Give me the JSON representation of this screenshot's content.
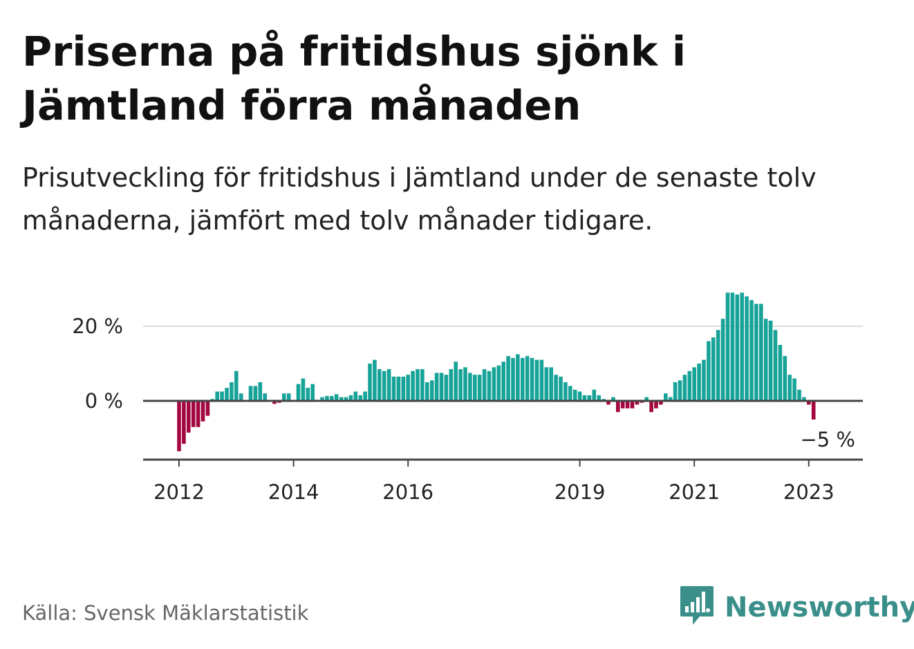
{
  "header": {
    "title": "Priserna på fritidshus sjönk i Jämtland förra månaden",
    "subtitle": "Prisutveckling för fritidshus i Jämtland under de senaste tolv månaderna, jämfört med tolv månader tidigare."
  },
  "footer": {
    "source": "Källa: Svensk Mäklarstatistik",
    "logo_text": "Newsworthy",
    "logo_icon": "newsworthy-chart-bubble-icon"
  },
  "colors": {
    "positive": "#17a398",
    "negative": "#a3073f",
    "grid": "#dddddd",
    "axis": "#444444",
    "brand": "#3a8f8a"
  },
  "chart_data": {
    "type": "bar",
    "ylim": [
      -15,
      30
    ],
    "yticks": [
      {
        "value": 0,
        "label": "0 %"
      },
      {
        "value": 20,
        "label": "20 %"
      }
    ],
    "xticks": [
      {
        "index": 0,
        "label": "2012"
      },
      {
        "index": 24,
        "label": "2014"
      },
      {
        "index": 48,
        "label": "2016"
      },
      {
        "index": 84,
        "label": "2019"
      },
      {
        "index": 108,
        "label": "2021"
      },
      {
        "index": 132,
        "label": "2023"
      }
    ],
    "last_label": "−5 %",
    "start": "2012-01",
    "values": [
      -13.5,
      -11.5,
      -8.5,
      -7,
      -7,
      -5.5,
      -4,
      0.5,
      2.5,
      2.5,
      3.5,
      5,
      8,
      2,
      0.2,
      4,
      4,
      5,
      2,
      0.2,
      -0.8,
      -0.5,
      2,
      2,
      0.2,
      4.5,
      6,
      3.5,
      4.5,
      0.3,
      1,
      1.3,
      1.3,
      1.8,
      1,
      1,
      1.5,
      2.5,
      1.5,
      2.5,
      10,
      11,
      8.5,
      8,
      8.5,
      6.5,
      6.5,
      6.5,
      7,
      8,
      8.5,
      8.5,
      5,
      5.5,
      7.5,
      7.5,
      7,
      8.5,
      10.5,
      8.5,
      9,
      7.5,
      7,
      7,
      8.5,
      8,
      9,
      9.5,
      10.5,
      12,
      11.5,
      12.5,
      11.5,
      12,
      11.5,
      11,
      11,
      9,
      9,
      7,
      6.5,
      5,
      4,
      3,
      2.5,
      1.5,
      1.5,
      3,
      1.5,
      0.5,
      -1,
      1,
      -3,
      -2,
      -2,
      -2,
      -1,
      -0.5,
      1,
      -3,
      -2,
      -1,
      2,
      1,
      5,
      5.5,
      7,
      8,
      9,
      10,
      11,
      16,
      17,
      19,
      22,
      29,
      29,
      28.5,
      29,
      28,
      27,
      26,
      26,
      22,
      21.5,
      19,
      15,
      12,
      7,
      6,
      3,
      1,
      -1,
      -5
    ],
    "annotation": {
      "index": 137,
      "text": "−5 %"
    }
  }
}
